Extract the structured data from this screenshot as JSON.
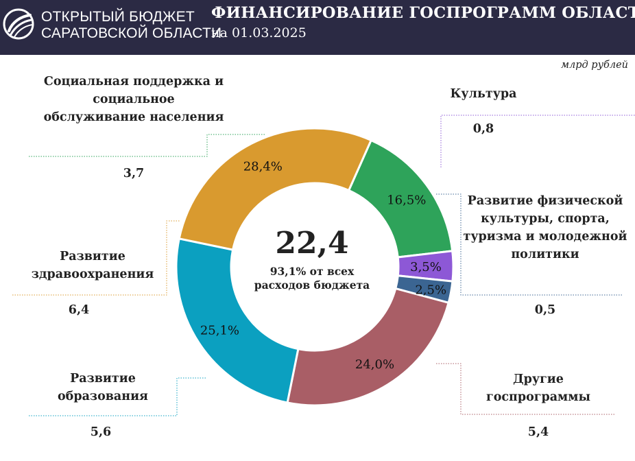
{
  "header": {
    "org_line1": "ОТКРЫТЫЙ БЮДЖЕТ",
    "org_line2": "САРАТОВСКОЙ ОБЛАСТИ",
    "title": "ФИНАНСИРОВАНИЕ ГОСПРОГРАММ ОБЛАСТИ",
    "date": "на 01.03.2025",
    "logo_icon": "swirl-logo-icon"
  },
  "unit": "млрд рублей",
  "center": {
    "total": "22,4",
    "caption": "93,1% от всех расходов бюджета"
  },
  "chart_data": {
    "type": "pie",
    "style": "donut",
    "series": [
      {
        "name": "Социальная поддержка и социальное обслуживание населения",
        "value": 3.7,
        "value_label": "3,7",
        "percent": 16.5,
        "percent_label": "16,5%",
        "color": "#2ea35a"
      },
      {
        "name": "Культура",
        "value": 0.8,
        "value_label": "0,8",
        "percent": 3.5,
        "percent_label": "3,5%",
        "color": "#8d58d6"
      },
      {
        "name": "Развитие физической культуры, спорта, туризма и молодежной политики",
        "value": 0.5,
        "value_label": "0,5",
        "percent": 2.5,
        "percent_label": "2,5%",
        "color": "#3b6592"
      },
      {
        "name": "Другие госпрограммы",
        "value": 5.4,
        "value_label": "5,4",
        "percent": 24.0,
        "percent_label": "24,0%",
        "color": "#a95e66"
      },
      {
        "name": "Развитие образования",
        "value": 5.6,
        "value_label": "5,6",
        "percent": 25.1,
        "percent_label": "25,1%",
        "color": "#0ba0c0"
      },
      {
        "name": "Развитие здравоохранения",
        "value": 6.4,
        "value_label": "6,4",
        "percent": 28.4,
        "percent_label": "28,4%",
        "color": "#d99a2f"
      }
    ]
  }
}
